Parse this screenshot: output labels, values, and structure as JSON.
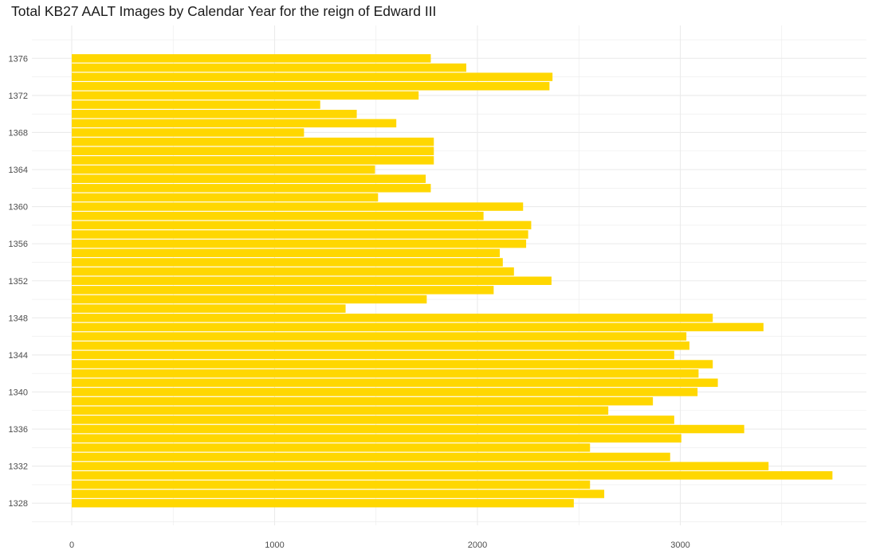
{
  "chart_data": {
    "type": "bar",
    "orientation": "horizontal",
    "title": "Total KB27 AALT Images by Calendar Year for the reign of Edward III",
    "xlabel": "",
    "ylabel": "",
    "bar_color": "#FFD700",
    "grid_color": "#ebebeb",
    "background": "#ffffff",
    "grid": true,
    "legend": "none",
    "xlim": [
      -200,
      3930
    ],
    "x_ticks": [
      0,
      1000,
      2000,
      3000
    ],
    "x_tick_labels": [
      "0",
      "1000",
      "2000",
      "3000"
    ],
    "y_ticks": [
      1328,
      1332,
      1336,
      1340,
      1344,
      1348,
      1352,
      1356,
      1360,
      1364,
      1368,
      1372,
      1376
    ],
    "y_tick_labels": [
      "1328",
      "1332",
      "1336",
      "1340",
      "1344",
      "1348",
      "1352",
      "1356",
      "1360",
      "1364",
      "1368",
      "1372",
      "1376"
    ],
    "categories": [
      1328,
      1329,
      1330,
      1331,
      1332,
      1333,
      1334,
      1335,
      1336,
      1337,
      1338,
      1339,
      1340,
      1341,
      1342,
      1343,
      1344,
      1345,
      1346,
      1347,
      1348,
      1349,
      1350,
      1351,
      1352,
      1353,
      1354,
      1355,
      1356,
      1357,
      1358,
      1359,
      1360,
      1361,
      1362,
      1363,
      1364,
      1365,
      1366,
      1367,
      1368,
      1369,
      1370,
      1371,
      1372,
      1373,
      1374,
      1375,
      1376
    ],
    "values": [
      2475,
      2625,
      2555,
      3750,
      3435,
      2950,
      2555,
      3005,
      3315,
      2970,
      2645,
      2865,
      3085,
      3185,
      3090,
      3160,
      2970,
      3045,
      3030,
      3410,
      3160,
      1350,
      1750,
      2080,
      2365,
      2180,
      2125,
      2110,
      2240,
      2250,
      2265,
      2030,
      2225,
      1510,
      1770,
      1745,
      1495,
      1785,
      1785,
      1785,
      1145,
      1600,
      1405,
      1225,
      1710,
      2355,
      2370,
      1945,
      1770
    ]
  }
}
